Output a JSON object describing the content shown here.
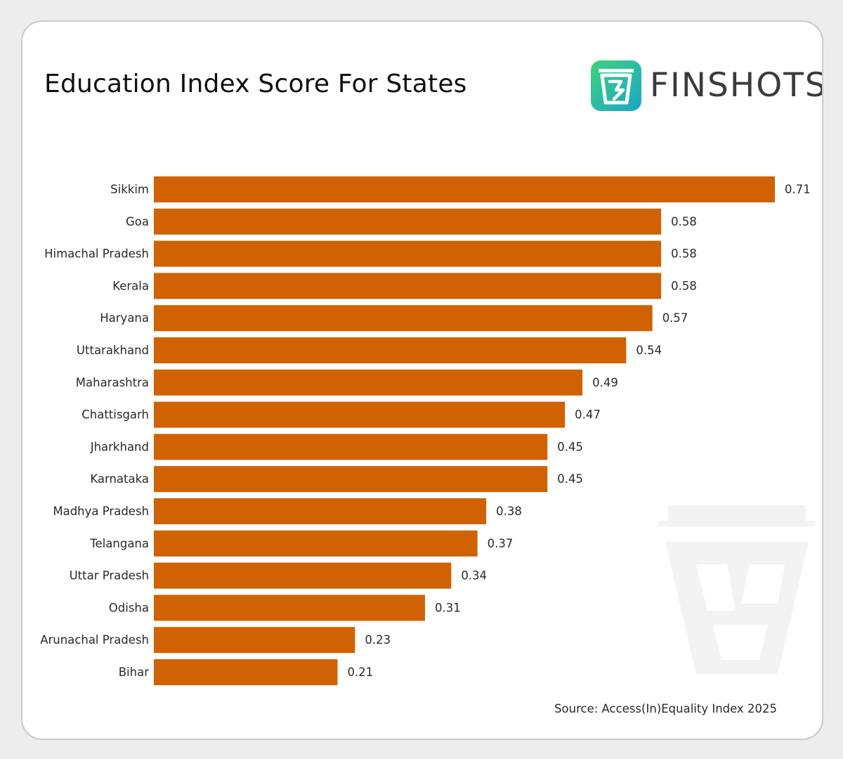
{
  "chart_data": {
    "type": "bar",
    "orientation": "horizontal",
    "title": "Education Index Score For States",
    "categories": [
      "Sikkim",
      "Goa",
      "Himachal Pradesh",
      "Kerala",
      "Haryana",
      "Uttarakhand",
      "Maharashtra",
      "Chattisgarh",
      "Jharkhand",
      "Karnataka",
      "Madhya Pradesh",
      "Telangana",
      "Uttar Pradesh",
      "Odisha",
      "Arunachal Pradesh",
      "Bihar"
    ],
    "values": [
      0.71,
      0.58,
      0.58,
      0.58,
      0.57,
      0.54,
      0.49,
      0.47,
      0.45,
      0.45,
      0.38,
      0.37,
      0.34,
      0.31,
      0.23,
      0.21
    ],
    "value_labels": [
      "0.71",
      "0.58",
      "0.58",
      "0.58",
      "0.57",
      "0.54",
      "0.49",
      "0.47",
      "0.45",
      "0.45",
      "0.38",
      "0.37",
      "0.34",
      "0.31",
      "0.23",
      "0.21"
    ],
    "xlim": [
      0,
      0.71
    ],
    "bar_color": "#d06203",
    "grid": false,
    "legend": "none",
    "source": "Source: Access(In)Equality Index 2025"
  },
  "brand": {
    "name": "FINSHOTS",
    "icon": "finshots-logo-icon",
    "icon_gradient": [
      "#3fd27a",
      "#1aa6c9"
    ]
  },
  "watermark": {
    "icon": "finshots-watermark-icon",
    "color": "#f3f3f3"
  }
}
